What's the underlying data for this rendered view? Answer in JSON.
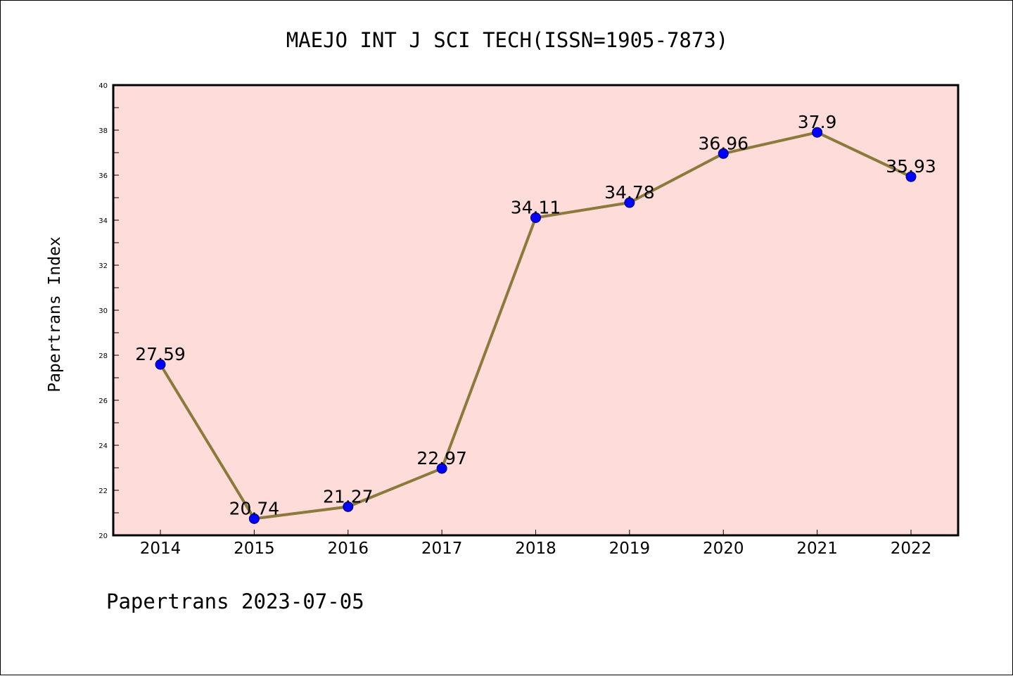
{
  "chart_data": {
    "type": "line",
    "title": "MAEJO INT J SCI TECH(ISSN=1905-7873)",
    "ylabel": "Papertrans Index",
    "xlabel": "",
    "footer": "Papertrans 2023-07-05",
    "categories": [
      "2014",
      "2015",
      "2016",
      "2017",
      "2018",
      "2019",
      "2020",
      "2021",
      "2022"
    ],
    "series": [
      {
        "values": [
          27.59,
          20.74,
          21.27,
          22.97,
          34.11,
          34.78,
          36.96,
          37.9,
          35.93
        ],
        "labels": [
          "27.59",
          "20.74",
          "21.27",
          "22.97",
          "34.11",
          "34.78",
          "36.96",
          "37.9",
          "35.93"
        ]
      }
    ],
    "ylim": [
      20,
      40
    ],
    "yticks": [
      "20",
      "22",
      "24",
      "26",
      "28",
      "30",
      "32",
      "34",
      "36",
      "38",
      "40"
    ],
    "grid": false,
    "legend": "none",
    "colors": {
      "plot_background": "#fddcda",
      "line": "#8b7a3a",
      "marker": "#0000ff",
      "axis": "#000000"
    }
  }
}
